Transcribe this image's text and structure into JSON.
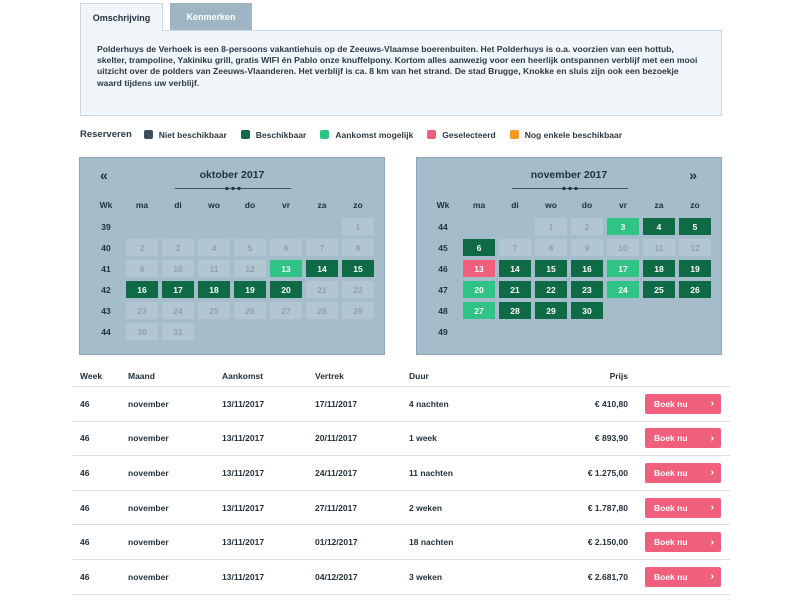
{
  "tabs": [
    {
      "label": "Omschrijving",
      "active": true
    },
    {
      "label": "Kenmerken",
      "active": false
    }
  ],
  "description": "Polderhuys de Verhoek is een 8-persoons vakantiehuis op de Zeeuws-Vlaamse boerenbuiten. Het Polderhuys is o.a. voorzien van een  hottub, skelter, trampoline, Yakiniku grill, gratis WIFI én Pablo onze knuffelpony. Kortom alles aanwezig voor een heerlijk ontspannen verblijf met een mooi uitzicht over de polders van Zeeuws-Vlaanderen. Het verblijf is ca. 8 km van het strand. De stad Brugge, Knokke en sluis zijn ook een bezoekje waard tijdens uw verblijf.",
  "legend": {
    "title": "Reserveren",
    "items": [
      {
        "label": "Niet beschikbaar",
        "color": "#3b4e5a"
      },
      {
        "label": "Beschikbaar",
        "color": "#0f6b45"
      },
      {
        "label": "Aankomst mogelijk",
        "color": "#2fc486"
      },
      {
        "label": "Geselecteerd",
        "color": "#f0607c"
      },
      {
        "label": "Nog enkele beschikbaar",
        "color": "#f39a1e"
      }
    ]
  },
  "calendar_headers": [
    "Wk",
    "ma",
    "di",
    "wo",
    "do",
    "vr",
    "za",
    "zo"
  ],
  "calendars": [
    {
      "title": "oktober 2017",
      "nav": "«",
      "weeks": [
        {
          "wk": "39",
          "days": [
            null,
            null,
            null,
            null,
            null,
            null,
            [
              "1",
              "na"
            ]
          ]
        },
        {
          "wk": "40",
          "days": [
            [
              "2",
              "na"
            ],
            [
              "3",
              "na"
            ],
            [
              "4",
              "na"
            ],
            [
              "5",
              "na"
            ],
            [
              "6",
              "na"
            ],
            [
              "7",
              "na"
            ],
            [
              "8",
              "na"
            ]
          ]
        },
        {
          "wk": "41",
          "days": [
            [
              "9",
              "na"
            ],
            [
              "10",
              "na"
            ],
            [
              "11",
              "na"
            ],
            [
              "12",
              "na"
            ],
            [
              "13",
              "ar"
            ],
            [
              "14",
              "av"
            ],
            [
              "15",
              "av"
            ]
          ]
        },
        {
          "wk": "42",
          "days": [
            [
              "16",
              "av"
            ],
            [
              "17",
              "av"
            ],
            [
              "18",
              "av"
            ],
            [
              "19",
              "av"
            ],
            [
              "20",
              "av"
            ],
            [
              "21",
              "na"
            ],
            [
              "22",
              "na"
            ]
          ]
        },
        {
          "wk": "43",
          "days": [
            [
              "23",
              "na"
            ],
            [
              "24",
              "na"
            ],
            [
              "25",
              "na"
            ],
            [
              "26",
              "na"
            ],
            [
              "27",
              "na"
            ],
            [
              "28",
              "na"
            ],
            [
              "29",
              "na"
            ]
          ]
        },
        {
          "wk": "44",
          "days": [
            [
              "30",
              "na"
            ],
            [
              "31",
              "na"
            ],
            null,
            null,
            null,
            null,
            null
          ]
        }
      ]
    },
    {
      "title": "november 2017",
      "nav": "»",
      "weeks": [
        {
          "wk": "44",
          "days": [
            null,
            null,
            [
              "1",
              "na"
            ],
            [
              "2",
              "na"
            ],
            [
              "3",
              "ar"
            ],
            [
              "4",
              "av"
            ],
            [
              "5",
              "av"
            ]
          ]
        },
        {
          "wk": "45",
          "days": [
            [
              "6",
              "av"
            ],
            [
              "7",
              "na"
            ],
            [
              "8",
              "na"
            ],
            [
              "9",
              "na"
            ],
            [
              "10",
              "na"
            ],
            [
              "11",
              "na"
            ],
            [
              "12",
              "na"
            ]
          ]
        },
        {
          "wk": "46",
          "days": [
            [
              "13",
              "sel"
            ],
            [
              "14",
              "av"
            ],
            [
              "15",
              "av"
            ],
            [
              "16",
              "av"
            ],
            [
              "17",
              "ar"
            ],
            [
              "18",
              "av"
            ],
            [
              "19",
              "av"
            ]
          ]
        },
        {
          "wk": "47",
          "days": [
            [
              "20",
              "ar"
            ],
            [
              "21",
              "av"
            ],
            [
              "22",
              "av"
            ],
            [
              "23",
              "av"
            ],
            [
              "24",
              "ar"
            ],
            [
              "25",
              "av"
            ],
            [
              "26",
              "av"
            ]
          ]
        },
        {
          "wk": "48",
          "days": [
            [
              "27",
              "ar"
            ],
            [
              "28",
              "av"
            ],
            [
              "29",
              "av"
            ],
            [
              "30",
              "av"
            ],
            null,
            null,
            null
          ]
        },
        {
          "wk": "49",
          "days": [
            null,
            null,
            null,
            null,
            null,
            null,
            null
          ]
        }
      ]
    }
  ],
  "table": {
    "headers": {
      "week": "Week",
      "maand": "Maand",
      "aankomst": "Aankomst",
      "vertrek": "Vertrek",
      "duur": "Duur",
      "prijs": "Prijs"
    },
    "book_label": "Boek nu",
    "rows": [
      {
        "week": "46",
        "maand": "november",
        "aankomst": "13/11/2017",
        "vertrek": "17/11/2017",
        "duur": "4 nachten",
        "prijs": "€ 410,80"
      },
      {
        "week": "46",
        "maand": "november",
        "aankomst": "13/11/2017",
        "vertrek": "20/11/2017",
        "duur": "1 week",
        "prijs": "€ 893,90"
      },
      {
        "week": "46",
        "maand": "november",
        "aankomst": "13/11/2017",
        "vertrek": "24/11/2017",
        "duur": "11 nachten",
        "prijs": "€ 1.275,00"
      },
      {
        "week": "46",
        "maand": "november",
        "aankomst": "13/11/2017",
        "vertrek": "27/11/2017",
        "duur": "2 weken",
        "prijs": "€ 1.787,80"
      },
      {
        "week": "46",
        "maand": "november",
        "aankomst": "13/11/2017",
        "vertrek": "01/12/2017",
        "duur": "18 nachten",
        "prijs": "€ 2.150,00"
      },
      {
        "week": "46",
        "maand": "november",
        "aankomst": "13/11/2017",
        "vertrek": "04/12/2017",
        "duur": "3 weken",
        "prijs": "€ 2.681,70"
      }
    ]
  }
}
